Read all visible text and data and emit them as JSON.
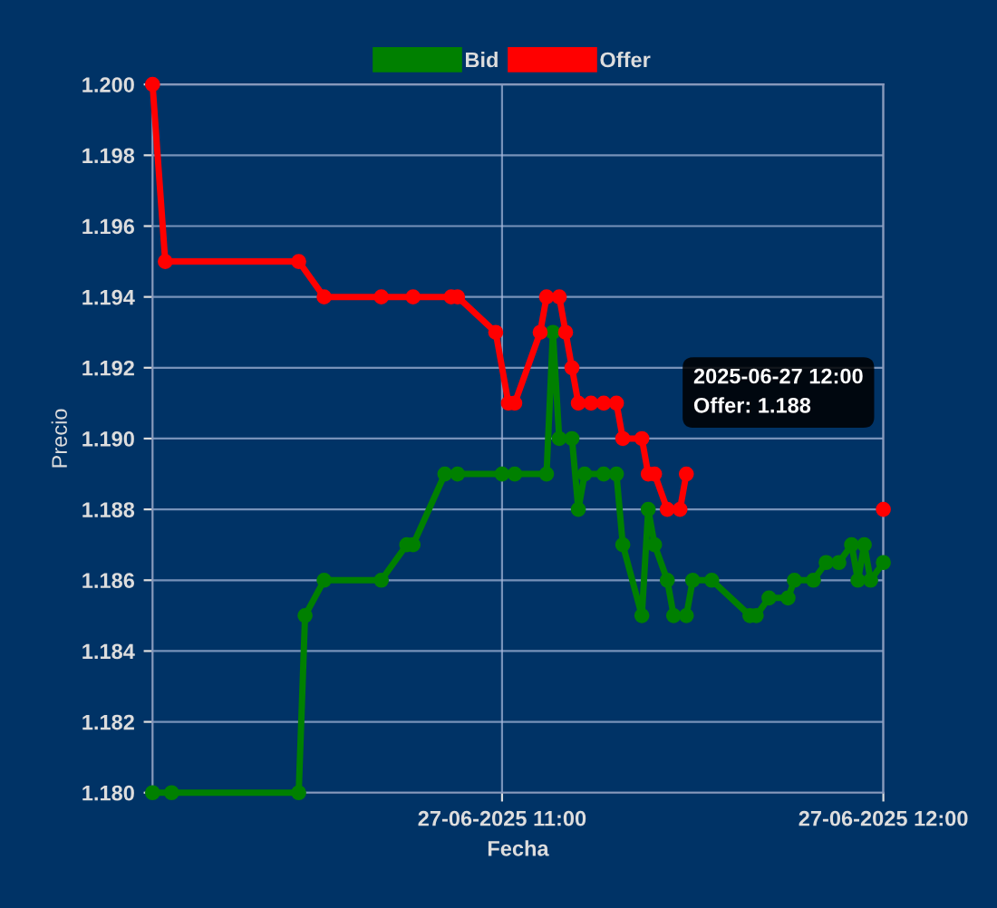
{
  "chart_data": {
    "type": "line",
    "xlabel": "Fecha",
    "ylabel": "Precio",
    "xlim": [
      "2025-06-27T10:05",
      "2025-06-27T12:00"
    ],
    "xticks": [
      {
        "value": "2025-06-27T11:00",
        "label": "27-06-2025 11:00"
      },
      {
        "value": "2025-06-27T12:00",
        "label": "27-06-2025 12:00"
      }
    ],
    "ylim": [
      1.18,
      1.2
    ],
    "yticks": [
      {
        "value": 1.18,
        "label": "1.180"
      },
      {
        "value": 1.182,
        "label": "1.182"
      },
      {
        "value": 1.184,
        "label": "1.184"
      },
      {
        "value": 1.186,
        "label": "1.186"
      },
      {
        "value": 1.188,
        "label": "1.188"
      },
      {
        "value": 1.19,
        "label": "1.190"
      },
      {
        "value": 1.192,
        "label": "1.192"
      },
      {
        "value": 1.194,
        "label": "1.194"
      },
      {
        "value": 1.196,
        "label": "1.196"
      },
      {
        "value": 1.198,
        "label": "1.198"
      },
      {
        "value": 1.2,
        "label": "1.200"
      }
    ],
    "grid": true,
    "legend": "top",
    "marker": "circle",
    "line_style": "solid",
    "series": [
      {
        "name": "Bid",
        "color": "#008000",
        "x": [
          "2025-06-27T10:05",
          "2025-06-27T10:08",
          "2025-06-27T10:28",
          "2025-06-27T10:29",
          "2025-06-27T10:32",
          "2025-06-27T10:41",
          "2025-06-27T10:45",
          "2025-06-27T10:46",
          "2025-06-27T10:51",
          "2025-06-27T10:53",
          "2025-06-27T11:00",
          "2025-06-27T11:02",
          "2025-06-27T11:07",
          "2025-06-27T11:08",
          "2025-06-27T11:09",
          "2025-06-27T11:11",
          "2025-06-27T11:12",
          "2025-06-27T11:13",
          "2025-06-27T11:16",
          "2025-06-27T11:18",
          "2025-06-27T11:19",
          "2025-06-27T11:22",
          "2025-06-27T11:23",
          "2025-06-27T11:24",
          "2025-06-27T11:26",
          "2025-06-27T11:27",
          "2025-06-27T11:29",
          "2025-06-27T11:30",
          "2025-06-27T11:33",
          "2025-06-27T11:39",
          "2025-06-27T11:40",
          "2025-06-27T11:42",
          "2025-06-27T11:45",
          "2025-06-27T11:46",
          "2025-06-27T11:49",
          "2025-06-27T11:51",
          "2025-06-27T11:53",
          "2025-06-27T11:55",
          "2025-06-27T11:56",
          "2025-06-27T11:57",
          "2025-06-27T11:58",
          "2025-06-27T12:00"
        ],
        "values": [
          1.18,
          1.18,
          1.18,
          1.185,
          1.186,
          1.186,
          1.187,
          1.187,
          1.189,
          1.189,
          1.189,
          1.189,
          1.189,
          1.193,
          1.19,
          1.19,
          1.188,
          1.189,
          1.189,
          1.189,
          1.187,
          1.185,
          1.188,
          1.187,
          1.186,
          1.185,
          1.185,
          1.186,
          1.186,
          1.185,
          1.185,
          1.1855,
          1.1855,
          1.186,
          1.186,
          1.1865,
          1.1865,
          1.187,
          1.186,
          1.187,
          1.186,
          1.1865
        ]
      },
      {
        "name": "Offer",
        "color": "#ff0000",
        "x": [
          "2025-06-27T10:05",
          "2025-06-27T10:07",
          "2025-06-27T10:28",
          "2025-06-27T10:32",
          "2025-06-27T10:41",
          "2025-06-27T10:46",
          "2025-06-27T10:52",
          "2025-06-27T10:53",
          "2025-06-27T10:59",
          "2025-06-27T11:01",
          "2025-06-27T11:02",
          "2025-06-27T11:06",
          "2025-06-27T11:07",
          "2025-06-27T11:09",
          "2025-06-27T11:10",
          "2025-06-27T11:11",
          "2025-06-27T11:12",
          "2025-06-27T11:14",
          "2025-06-27T11:16",
          "2025-06-27T11:18",
          "2025-06-27T11:19",
          "2025-06-27T11:22",
          "2025-06-27T11:23",
          "2025-06-27T11:24",
          "2025-06-27T11:26",
          "2025-06-27T11:28",
          "2025-06-27T11:29",
          "2025-06-27T11:45",
          "2025-06-27T12:00"
        ],
        "values": [
          1.2,
          1.195,
          1.195,
          1.194,
          1.194,
          1.194,
          1.194,
          1.194,
          1.193,
          1.191,
          1.191,
          1.193,
          1.194,
          1.194,
          1.193,
          1.192,
          1.191,
          1.191,
          1.191,
          1.191,
          1.19,
          1.19,
          1.189,
          1.189,
          1.188,
          1.188,
          1.189,
          null,
          1.188
        ]
      }
    ],
    "annotations": [
      "2025-06-27 12:00\nOffer: 1.188"
    ]
  }
}
